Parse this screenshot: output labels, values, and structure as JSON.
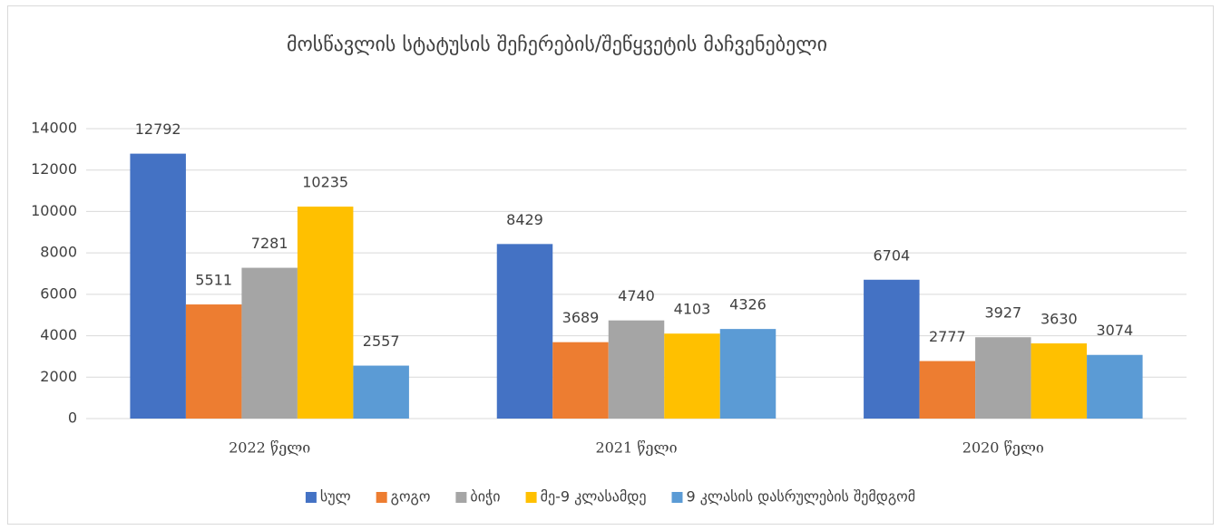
{
  "chart_data": {
    "type": "bar",
    "title": "მოსწავლის სტატუსის შეჩერების/შეწყვეტის მაჩვენებელი",
    "categories": [
      "2022 წელი",
      "2021 წელი",
      "2020 წელი"
    ],
    "series": [
      {
        "name": "სულ",
        "color": "#4472c4",
        "values": [
          12792,
          8429,
          6704
        ]
      },
      {
        "name": "გოგო",
        "color": "#ed7d31",
        "values": [
          5511,
          3689,
          2777
        ]
      },
      {
        "name": "ბიჭი",
        "color": "#a5a5a5",
        "values": [
          7281,
          4740,
          3927
        ]
      },
      {
        "name": "მე-9 კლასამდე",
        "color": "#ffc000",
        "values": [
          10235,
          4103,
          3630
        ]
      },
      {
        "name": "9 კლასის დასრულების შემდგომ",
        "color": "#5b9bd5",
        "values": [
          2557,
          4326,
          3074
        ]
      }
    ],
    "ylim": [
      0,
      14000
    ],
    "yticks": [
      0,
      2000,
      4000,
      6000,
      8000,
      10000,
      12000,
      14000
    ],
    "grid": true,
    "legend": "bottom"
  }
}
